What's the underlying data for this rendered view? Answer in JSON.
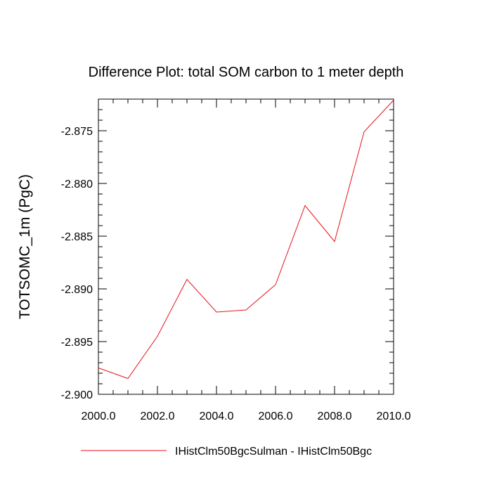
{
  "chart_data": {
    "type": "line",
    "title": "Difference Plot: total SOM carbon to 1 meter depth",
    "xlabel": "",
    "ylabel": "TOTSOMC_1m  (PgC)",
    "xlim": [
      2000,
      2010
    ],
    "ylim": [
      -2.9,
      -2.872
    ],
    "x_ticks": [
      2000,
      2002,
      2004,
      2006,
      2008,
      2010
    ],
    "x_tick_labels": [
      "2000.0",
      "2002.0",
      "2004.0",
      "2006.0",
      "2008.0",
      "2010.0"
    ],
    "y_ticks": [
      -2.9,
      -2.895,
      -2.89,
      -2.885,
      -2.88,
      -2.875
    ],
    "y_tick_labels": [
      "-2.900",
      "-2.895",
      "-2.890",
      "-2.885",
      "-2.880",
      "-2.875"
    ],
    "grid": false,
    "legend_position": "bottom-center",
    "series": [
      {
        "name": "IHistClm50BgcSulman - IHistClm50Bgc",
        "color": "#e8121b",
        "x": [
          2000,
          2001,
          2002,
          2003,
          2004,
          2005,
          2006,
          2007,
          2008,
          2009,
          2010
        ],
        "y": [
          -2.8975,
          -2.8985,
          -2.8945,
          -2.8891,
          -2.8922,
          -2.892,
          -2.8896,
          -2.8821,
          -2.8855,
          -2.8751,
          -2.8721
        ]
      }
    ]
  }
}
